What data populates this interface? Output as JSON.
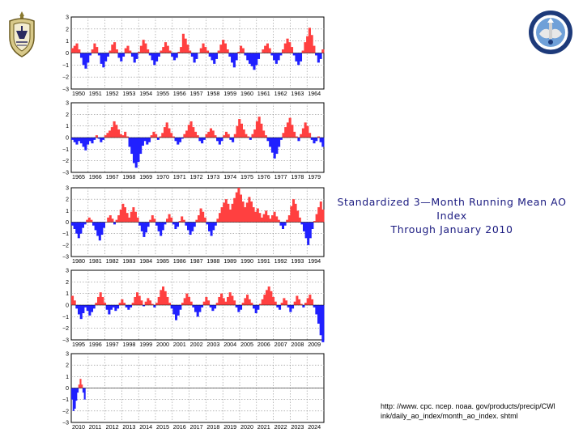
{
  "title": {
    "line1": "Standardized 3—Month Running Mean AO Index",
    "line2": "Through January 2010"
  },
  "source": {
    "line1": "http: //www. cpc. ncep. noaa. gov/products/precip/CWl",
    "line2": "ink/daily_ao_index/month_ao_index. shtml"
  },
  "logos": {
    "left": "naval-academy-crest-icon",
    "right": "circular-seal-icon"
  },
  "colors": {
    "positive": "#ff4040",
    "negative": "#2020ff",
    "grid": "#8c8c8c"
  },
  "chart_data": [
    {
      "type": "bar",
      "x_start": 1950,
      "x_end": 1965,
      "tick_labels": [
        "1950",
        "1951",
        "1952",
        "1953",
        "1954",
        "1955",
        "1956",
        "1957",
        "1958",
        "1959",
        "1960",
        "1961",
        "1962",
        "1963",
        "1964"
      ],
      "ylim": [
        -3,
        3
      ],
      "yticks": [
        3,
        2,
        1,
        0,
        -1,
        -2,
        -3
      ],
      "grid": true,
      "values": [
        0.4,
        0.6,
        0.8,
        0.3,
        -0.4,
        -1.0,
        -1.3,
        -0.8,
        -0.2,
        0.3,
        0.8,
        0.5,
        -0.2,
        -0.9,
        -1.2,
        -0.7,
        -0.3,
        0.2,
        0.7,
        0.9,
        0.3,
        -0.4,
        -0.7,
        -0.3,
        0.4,
        0.6,
        0.2,
        -0.3,
        -0.8,
        -0.5,
        0.1,
        0.6,
        1.1,
        0.8,
        0.3,
        -0.2,
        -0.6,
        -1.0,
        -0.7,
        -0.3,
        0.2,
        0.5,
        0.9,
        0.6,
        0.2,
        -0.3,
        -0.6,
        -0.4,
        0.1,
        0.5,
        1.6,
        1.2,
        0.7,
        0.2,
        -0.3,
        -0.8,
        -0.5,
        0.0,
        0.4,
        0.8,
        0.5,
        0.2,
        -0.3,
        -0.6,
        -0.9,
        -0.5,
        0.2,
        0.7,
        1.1,
        0.8,
        0.3,
        -0.3,
        -0.8,
        -1.2,
        -0.6,
        0.1,
        0.6,
        0.4,
        -0.2,
        -0.6,
        -0.9,
        -1.1,
        -1.4,
        -1.0,
        -0.5,
        0.0,
        0.3,
        0.6,
        0.8,
        0.4,
        -0.2,
        -0.6,
        -0.9,
        -0.6,
        -0.2,
        0.3,
        0.8,
        1.2,
        0.9,
        0.5,
        -0.2,
        -0.7,
        -1.0,
        -0.7,
        0.2,
        0.9,
        1.4,
        2.1,
        1.5,
        0.6,
        -0.2,
        -0.8,
        -0.5,
        0.3
      ]
    },
    {
      "type": "bar",
      "x_start": 1965,
      "x_end": 1980,
      "tick_labels": [
        "1965",
        "1966",
        "1967",
        "1968",
        "1969",
        "1970",
        "1971",
        "1972",
        "1973",
        "1974",
        "1975",
        "1976",
        "1977",
        "1978",
        "1979"
      ],
      "ylim": [
        -3,
        3
      ],
      "yticks": [
        3,
        2,
        1,
        0,
        -1,
        -2,
        -3
      ],
      "grid": true,
      "values": [
        -0.2,
        -0.4,
        -0.6,
        -0.3,
        -0.5,
        -0.8,
        -1.1,
        -0.6,
        -0.3,
        -0.5,
        -0.2,
        0.2,
        -0.1,
        -0.4,
        -0.2,
        0.2,
        0.4,
        0.6,
        0.9,
        1.4,
        1.1,
        0.7,
        0.3,
        0.2,
        0.5,
        0.1,
        -0.8,
        -1.4,
        -2.2,
        -2.6,
        -2.1,
        -1.4,
        -0.7,
        -0.3,
        -0.6,
        -0.4,
        0.2,
        0.5,
        0.3,
        -0.2,
        0.1,
        0.4,
        0.9,
        1.3,
        0.8,
        0.4,
        0.1,
        -0.3,
        -0.6,
        -0.4,
        -0.1,
        0.3,
        0.6,
        1.1,
        1.4,
        0.9,
        0.5,
        0.2,
        -0.3,
        -0.5,
        -0.2,
        0.3,
        0.5,
        0.8,
        0.6,
        0.2,
        -0.3,
        -0.6,
        -0.3,
        0.2,
        0.5,
        0.3,
        -0.2,
        -0.4,
        0.3,
        1.0,
        1.6,
        1.2,
        0.7,
        0.3,
        0.1,
        -0.2,
        0.3,
        0.7,
        1.4,
        1.8,
        1.2,
        0.6,
        0.2,
        -0.3,
        -0.8,
        -1.3,
        -1.8,
        -1.4,
        -0.8,
        -0.2,
        0.4,
        0.9,
        1.3,
        1.7,
        1.1,
        0.5,
        0.1,
        -0.3,
        0.3,
        0.8,
        1.3,
        1.0,
        0.4,
        -0.2,
        -0.5,
        -0.3,
        0.1,
        -0.4,
        -0.8
      ]
    },
    {
      "type": "bar",
      "x_start": 1980,
      "x_end": 1995,
      "tick_labels": [
        "1980",
        "1981",
        "1982",
        "1983",
        "1984",
        "1985",
        "1986",
        "1987",
        "1988",
        "1989",
        "1990",
        "1991",
        "1992",
        "1993",
        "1994"
      ],
      "ylim": [
        -3,
        3
      ],
      "yticks": [
        3,
        2,
        1,
        0,
        -1,
        -2,
        -3
      ],
      "grid": true,
      "values": [
        -0.3,
        -0.6,
        -1.0,
        -1.4,
        -1.0,
        -0.5,
        -0.2,
        0.2,
        0.4,
        0.2,
        -0.3,
        -0.7,
        -1.2,
        -1.6,
        -1.1,
        -0.5,
        0.0,
        0.4,
        0.6,
        0.3,
        -0.2,
        0.2,
        0.6,
        1.1,
        1.6,
        1.3,
        0.8,
        0.4,
        0.9,
        1.3,
        0.9,
        0.4,
        -0.3,
        -0.8,
        -1.3,
        -0.9,
        -0.4,
        0.2,
        0.6,
        0.3,
        -0.3,
        -0.8,
        -1.2,
        -0.7,
        -0.2,
        0.3,
        0.7,
        0.4,
        -0.2,
        -0.6,
        -0.4,
        0.1,
        0.5,
        0.2,
        -0.3,
        -0.7,
        -1.1,
        -0.8,
        -0.4,
        0.2,
        0.6,
        1.2,
        0.9,
        0.4,
        -0.2,
        -0.8,
        -1.2,
        -0.7,
        -0.3,
        0.3,
        0.8,
        1.3,
        1.7,
        2.0,
        1.6,
        1.1,
        1.6,
        2.1,
        2.6,
        3.0,
        2.4,
        1.8,
        1.3,
        1.7,
        2.2,
        1.8,
        1.3,
        0.9,
        1.2,
        0.8,
        0.4,
        0.7,
        1.0,
        0.6,
        0.3,
        0.6,
        0.9,
        0.5,
        0.2,
        -0.3,
        -0.6,
        -0.3,
        0.2,
        0.6,
        1.4,
        2.0,
        1.6,
        1.0,
        0.4,
        -0.2,
        -0.8,
        -1.4,
        -2.0,
        -1.4,
        -0.6,
        0.1,
        0.7,
        1.3,
        1.8,
        1.1
      ]
    },
    {
      "type": "bar",
      "x_start": 1995,
      "x_end": 2010,
      "tick_labels": [
        "1995",
        "1996",
        "1997",
        "1998",
        "1999",
        "2000",
        "2001",
        "2002",
        "2003",
        "2004",
        "2005",
        "2006",
        "2007",
        "2008",
        "2009"
      ],
      "ylim": [
        -3,
        3
      ],
      "yticks": [
        3,
        2,
        1,
        0,
        -1,
        -2,
        -3
      ],
      "grid": true,
      "values": [
        0.8,
        0.4,
        -0.3,
        -0.8,
        -1.2,
        -0.7,
        -0.2,
        -0.5,
        -0.9,
        -0.6,
        -0.3,
        0.2,
        0.7,
        1.1,
        0.7,
        0.2,
        -0.4,
        -0.8,
        -0.4,
        -0.2,
        -0.5,
        -0.3,
        0.2,
        0.5,
        0.2,
        -0.2,
        -0.4,
        -0.2,
        0.2,
        0.7,
        1.1,
        0.8,
        0.4,
        -0.1,
        0.3,
        0.6,
        0.4,
        0.1,
        -0.2,
        0.2,
        0.7,
        1.3,
        1.6,
        1.2,
        0.7,
        0.2,
        -0.3,
        -0.8,
        -1.3,
        -0.9,
        -0.4,
        0.2,
        0.6,
        1.0,
        0.7,
        0.3,
        -0.2,
        -0.6,
        -1.0,
        -0.6,
        -0.2,
        0.3,
        0.7,
        0.4,
        -0.2,
        -0.5,
        -0.3,
        0.2,
        0.7,
        1.0,
        0.6,
        0.3,
        0.7,
        1.1,
        0.8,
        0.4,
        -0.2,
        -0.6,
        -0.4,
        0.2,
        0.6,
        0.9,
        0.5,
        0.2,
        -0.3,
        -0.7,
        -0.4,
        0.1,
        0.5,
        0.9,
        1.3,
        1.6,
        1.2,
        0.7,
        0.3,
        -0.2,
        -0.4,
        0.2,
        0.6,
        0.4,
        -0.2,
        -0.6,
        -0.3,
        0.3,
        0.8,
        0.5,
        0.1,
        -0.2,
        0.2,
        0.6,
        0.9,
        0.5,
        -0.2,
        -0.8,
        -1.6,
        -2.6,
        -3.2
      ]
    },
    {
      "type": "bar",
      "x_start": 2010,
      "x_end": 2025,
      "tick_labels": [
        "2010",
        "2011",
        "2012",
        "2013",
        "2014",
        "2015",
        "2016",
        "2017",
        "2018",
        "2019",
        "2020",
        "2021",
        "2022",
        "2023",
        "2024"
      ],
      "ylim": [
        -3,
        3
      ],
      "yticks": [
        3,
        2,
        1,
        0,
        -1,
        -2,
        -3
      ],
      "grid": true,
      "values": [
        -1.0,
        -2.0,
        -1.8,
        -1.1,
        -0.4,
        0.3,
        0.8,
        0.3,
        -0.4,
        -1.0
      ]
    }
  ]
}
